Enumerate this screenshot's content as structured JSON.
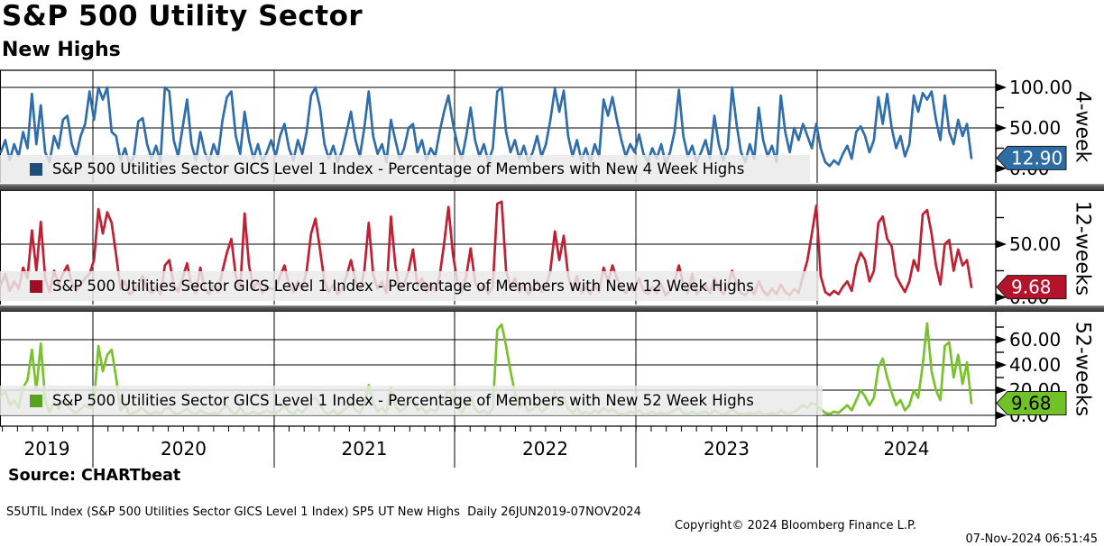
{
  "title": "S&P 500 Utility Sector",
  "subtitle": "New Highs",
  "source_line": "Source: CHARTbeat",
  "footer": {
    "left": "S5UTIL Index (S&P 500 Utilities Sector GICS Level 1 Index) SP5 UT New Highs  Daily 26JUN2019-07NOV2024",
    "center": "Copyright© 2024 Bloomberg Finance L.P.",
    "right": "07-Nov-2024 06:51:45"
  },
  "x_axis": {
    "year_labels": [
      "2019",
      "2020",
      "2021",
      "2022",
      "2023",
      "2024"
    ]
  },
  "chart_data": {
    "type": "line",
    "x_start": "26JUN2019",
    "x_end": "07NOV2024",
    "sampling": "daily series shown; values below are ~weekly estimates read from pixels (220 points per series)",
    "grid": "horizontal gridlines at labeled ticks, vertical gridlines at year boundaries",
    "panels": [
      {
        "id": "new-4-week-highs",
        "axis_side_label": "4-week",
        "legend": "S&P 500 Utilities Sector GICS Level 1 Index - Percentage of Members with New 4 Week Highs",
        "last_label": "12.90",
        "last_value": 12.9,
        "line_color": "#2f6dab",
        "swatch_color": "#1f4e79",
        "badge_color": "#2e6da4",
        "badge_text_color": "#ffffff",
        "ylim": [
          0,
          120
        ],
        "y_axis": {
          "labeled_ticks": [
            "0.00",
            "50.00",
            "100.00"
          ],
          "labeled_values": [
            0,
            50,
            100
          ],
          "minor_values": [
            25,
            75
          ],
          "gridline_values": [
            50,
            100
          ]
        },
        "values": [
          20,
          35,
          10,
          30,
          15,
          45,
          25,
          92,
          30,
          78,
          20,
          8,
          40,
          25,
          60,
          65,
          30,
          15,
          40,
          55,
          95,
          60,
          100,
          85,
          100,
          45,
          40,
          10,
          25,
          5,
          15,
          58,
          62,
          30,
          12,
          28,
          8,
          100,
          95,
          35,
          15,
          50,
          85,
          30,
          10,
          45,
          20,
          8,
          30,
          15,
          60,
          88,
          95,
          40,
          18,
          70,
          35,
          12,
          30,
          8,
          20,
          35,
          15,
          40,
          55,
          25,
          10,
          35,
          18,
          45,
          90,
          100,
          75,
          30,
          12,
          28,
          8,
          22,
          45,
          70,
          35,
          15,
          50,
          95,
          40,
          18,
          30,
          8,
          60,
          35,
          12,
          25,
          50,
          55,
          20,
          35,
          10,
          25,
          15,
          45,
          70,
          90,
          55,
          30,
          12,
          40,
          75,
          35,
          15,
          30,
          8,
          25,
          95,
          100,
          45,
          20,
          35,
          12,
          28,
          8,
          20,
          40,
          15,
          30,
          60,
          98,
          70,
          96,
          40,
          15,
          35,
          10,
          25,
          8,
          30,
          15,
          85,
          65,
          88,
          60,
          35,
          15,
          30,
          20,
          42,
          18,
          8,
          25,
          12,
          30,
          6,
          20,
          45,
          97,
          40,
          15,
          28,
          8,
          20,
          35,
          12,
          65,
          30,
          10,
          25,
          100,
          55,
          20,
          8,
          30,
          12,
          75,
          35,
          15,
          28,
          8,
          90,
          45,
          20,
          50,
          35,
          55,
          40,
          25,
          55,
          25,
          8,
          3,
          10,
          5,
          18,
          28,
          12,
          45,
          52,
          40,
          20,
          35,
          88,
          55,
          92,
          50,
          25,
          40,
          15,
          30,
          90,
          70,
          93,
          85,
          95,
          60,
          35,
          90,
          45,
          30,
          60,
          40,
          55,
          12.9
        ]
      },
      {
        "id": "new-12-week-highs",
        "axis_side_label": "12-weeks",
        "legend": "S&P 500 Utilities Sector GICS Level 1 Index - Percentage of Members with New 12 Week Highs",
        "last_label": "9.68",
        "last_value": 9.68,
        "line_color": "#bf2034",
        "swatch_color": "#9e1021",
        "badge_color": "#b5122b",
        "badge_text_color": "#ffffff",
        "ylim": [
          0,
          99
        ],
        "y_axis": {
          "labeled_ticks": [
            "0.00",
            "50.00"
          ],
          "labeled_values": [
            0,
            50
          ],
          "minor_values": [
            25,
            75
          ],
          "gridline_values": [
            50
          ]
        },
        "values": [
          12,
          22,
          6,
          15,
          8,
          28,
          18,
          63,
          25,
          71,
          18,
          5,
          25,
          12,
          22,
          30,
          14,
          6,
          12,
          18,
          22,
          35,
          83,
          60,
          80,
          70,
          40,
          8,
          15,
          3,
          6,
          12,
          20,
          8,
          4,
          10,
          3,
          30,
          35,
          12,
          5,
          18,
          32,
          10,
          4,
          28,
          8,
          3,
          12,
          5,
          25,
          42,
          55,
          20,
          8,
          79,
          30,
          8,
          15,
          4,
          10,
          8,
          8,
          20,
          30,
          12,
          5,
          15,
          8,
          25,
          60,
          74,
          45,
          15,
          5,
          12,
          3,
          8,
          20,
          35,
          15,
          6,
          25,
          70,
          22,
          8,
          15,
          4,
          76,
          30,
          8,
          12,
          25,
          45,
          10,
          18,
          5,
          12,
          6,
          20,
          50,
          85,
          40,
          15,
          5,
          20,
          46,
          15,
          6,
          12,
          3,
          10,
          88,
          90,
          25,
          10,
          18,
          5,
          12,
          3,
          8,
          15,
          5,
          10,
          25,
          62,
          35,
          58,
          20,
          6,
          20,
          4,
          10,
          3,
          12,
          5,
          28,
          15,
          30,
          18,
          8,
          4,
          10,
          6,
          18,
          6,
          3,
          10,
          4,
          12,
          2,
          6,
          15,
          30,
          12,
          4,
          22,
          3,
          8,
          12,
          4,
          18,
          8,
          3,
          10,
          25,
          12,
          4,
          2,
          8,
          3,
          15,
          6,
          2,
          8,
          3,
          12,
          5,
          2,
          8,
          4,
          20,
          35,
          60,
          86,
          20,
          5,
          2,
          6,
          3,
          10,
          15,
          6,
          30,
          42,
          35,
          15,
          25,
          70,
          76,
          55,
          48,
          20,
          12,
          5,
          15,
          35,
          25,
          78,
          82,
          60,
          30,
          12,
          50,
          54,
          25,
          45,
          30,
          35,
          9.68
        ]
      },
      {
        "id": "new-52-week-highs",
        "axis_side_label": "52-weeks",
        "legend": "S&P 500 Utilities Sector GICS Level 1 Index - Percentage of Members with New 52 Week Highs",
        "last_label": "9.68",
        "last_value": 9.68,
        "ylim": [
          0,
          82
        ],
        "line_color": "#7ac22d",
        "swatch_color": "#5aa21e",
        "badge_color": "#70c226",
        "badge_text_color": "#000000",
        "y_axis": {
          "labeled_ticks": [
            "0.00",
            "20.00",
            "40.00",
            "60.00"
          ],
          "labeled_values": [
            0,
            20,
            40,
            60
          ],
          "minor_values": [
            10,
            30,
            50,
            70
          ],
          "gridline_values": [
            0,
            20,
            40,
            60
          ]
        },
        "values": [
          15,
          20,
          8,
          12,
          6,
          22,
          28,
          52,
          20,
          57,
          12,
          3,
          10,
          5,
          12,
          8,
          4,
          2,
          5,
          8,
          6,
          10,
          55,
          35,
          48,
          52,
          30,
          4,
          8,
          1,
          2,
          4,
          6,
          2,
          1,
          3,
          1,
          5,
          6,
          2,
          1,
          3,
          5,
          2,
          1,
          4,
          2,
          1,
          2,
          1,
          5,
          8,
          3,
          1,
          6,
          2,
          1,
          3,
          1,
          2,
          4,
          2,
          2,
          4,
          8,
          3,
          1,
          5,
          2,
          6,
          12,
          14,
          8,
          3,
          1,
          4,
          1,
          3,
          6,
          10,
          4,
          2,
          8,
          24,
          10,
          3,
          6,
          2,
          22,
          8,
          3,
          5,
          10,
          12,
          4,
          6,
          2,
          5,
          3,
          8,
          12,
          20,
          15,
          6,
          2,
          8,
          15,
          5,
          2,
          4,
          1,
          6,
          68,
          72,
          55,
          35,
          18,
          6,
          10,
          3,
          5,
          8,
          3,
          5,
          10,
          18,
          8,
          14,
          5,
          2,
          6,
          1,
          3,
          1,
          4,
          2,
          6,
          3,
          5,
          2,
          1,
          1,
          3,
          2,
          4,
          1,
          1,
          3,
          1,
          2,
          1,
          2,
          4,
          6,
          2,
          1,
          3,
          1,
          2,
          3,
          1,
          4,
          2,
          1,
          2,
          5,
          2,
          1,
          1,
          2,
          1,
          3,
          1,
          1,
          2,
          1,
          4,
          2,
          1,
          3,
          5,
          8,
          6,
          10,
          8,
          5,
          2,
          1,
          3,
          2,
          5,
          8,
          4,
          12,
          20,
          15,
          8,
          14,
          38,
          45,
          30,
          18,
          8,
          12,
          4,
          8,
          20,
          14,
          40,
          73,
          35,
          20,
          12,
          55,
          58,
          30,
          48,
          25,
          42,
          9.68
        ]
      }
    ]
  }
}
